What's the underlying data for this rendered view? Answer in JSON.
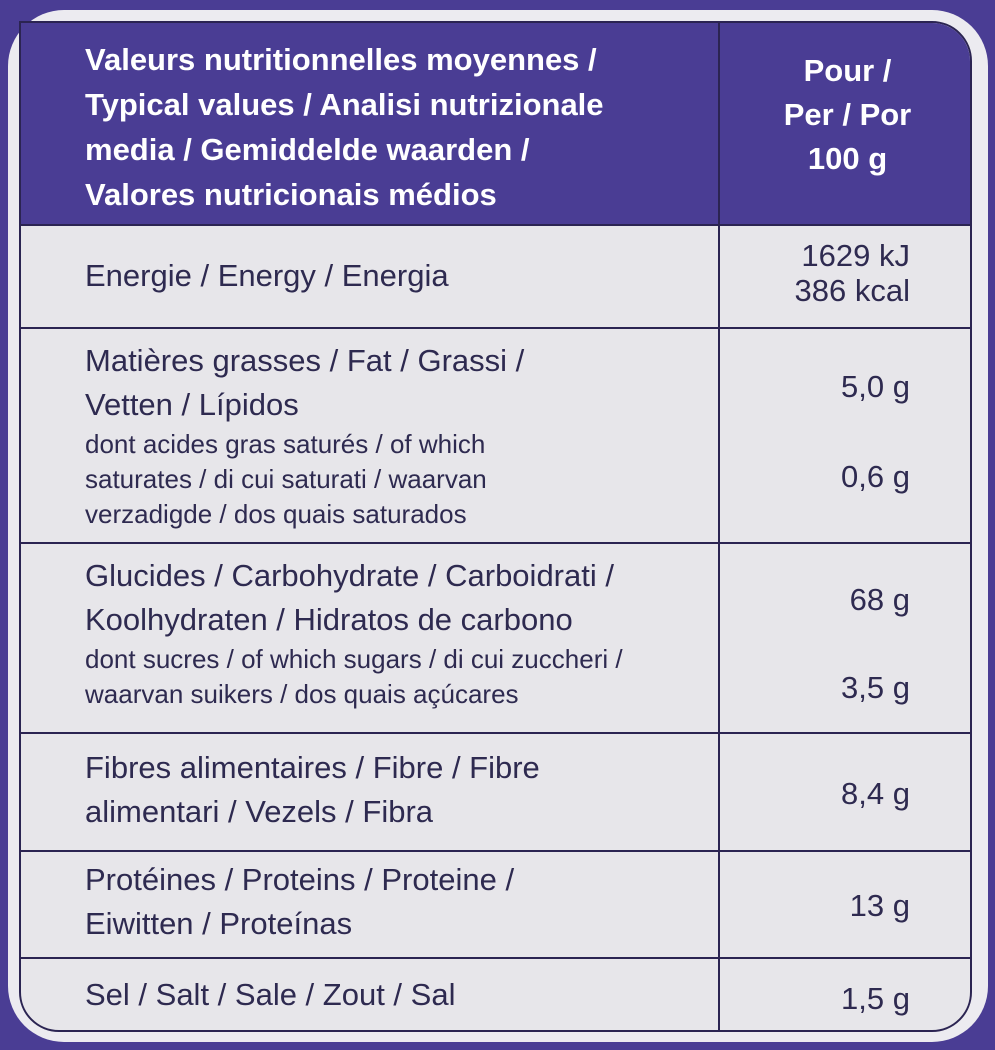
{
  "header": {
    "label_lines": [
      "Valeurs nutritionnelles moyennes /",
      "Typical values / Analisi nutrizionale",
      "media / Gemiddelde waarden /",
      "Valores nutricionais médios"
    ],
    "per_lines": [
      "Pour /",
      "Per / Por",
      "100 g"
    ]
  },
  "rows": {
    "energy": {
      "label": "Energie / Energy / Energia",
      "value_kj": "1629 kJ",
      "value_kcal": "386 kcal"
    },
    "fat": {
      "label_lines": [
        "Matières grasses / Fat / Grassi /",
        "Vetten / Lípidos"
      ],
      "value": "5,0 g",
      "sub_lines": [
        "dont acides gras saturés / of which",
        "saturates / di cui saturati / waarvan",
        "verzadigde / dos quais saturados"
      ],
      "sub_value": "0,6 g"
    },
    "carbs": {
      "label_lines": [
        "Glucides / Carbohydrate / Carboidrati /",
        "Koolhydraten / Hidratos de carbono"
      ],
      "value": "68 g",
      "sub_lines": [
        "dont sucres / of which sugars / di cui zuccheri /",
        "waarvan suikers / dos quais açúcares"
      ],
      "sub_value": "3,5 g"
    },
    "fibre": {
      "label_lines": [
        "Fibres alimentaires / Fibre / Fibre",
        "alimentari / Vezels / Fibra"
      ],
      "value": "8,4 g"
    },
    "protein": {
      "label_lines": [
        "Protéines / Proteins / Proteine /",
        "Eiwitten / Proteínas"
      ],
      "value": "13 g"
    },
    "salt": {
      "label": "Sel / Salt / Sale / Zout / Sal",
      "value": "1,5 g"
    }
  },
  "colors": {
    "brand_purple": "#4a3d94",
    "cell_bg": "#e7e6ea",
    "text": "#2e2a50"
  }
}
